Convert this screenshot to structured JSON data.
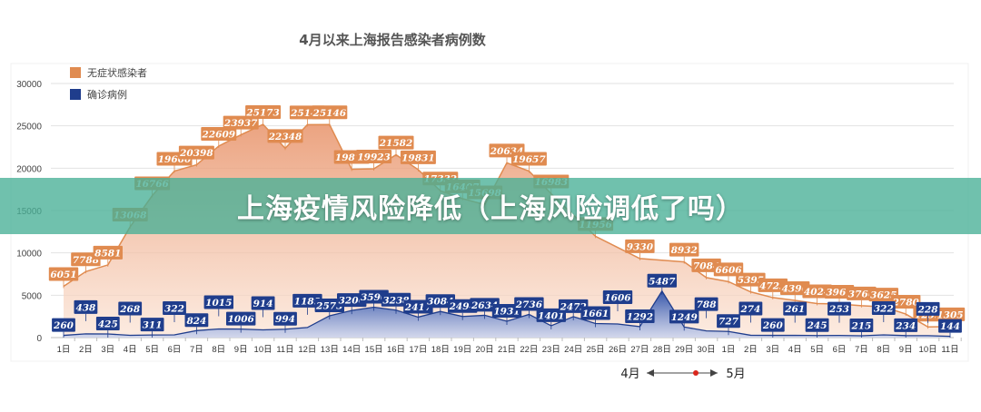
{
  "banner": {
    "text": "上海疫情风险降低（上海风险调低了吗）"
  },
  "chart_data": {
    "type": "area",
    "title": "4月以来上海报告感染者病例数",
    "categories": [
      "1日",
      "2日",
      "3日",
      "4日",
      "5日",
      "6日",
      "7日",
      "8日",
      "9日",
      "10日",
      "11日",
      "12日",
      "13日",
      "14日",
      "15日",
      "16日",
      "17日",
      "18日",
      "19日",
      "20日",
      "21日",
      "22日",
      "23日",
      "24日",
      "25日",
      "26日",
      "27日",
      "28日",
      "29日",
      "30日",
      "1日",
      "2日",
      "3日",
      "4日",
      "5日",
      "6日",
      "7日",
      "8日",
      "9日",
      "10日",
      "11日"
    ],
    "series": [
      {
        "name": "无症状感染者",
        "color": "#e08b50",
        "values": [
          6051,
          7788,
          8581,
          13068,
          16766,
          19660,
          20398,
          22609,
          23937,
          25173,
          22348,
          25141,
          25146,
          19872,
          19923,
          21582,
          19831,
          17332,
          16407,
          15698,
          20634,
          19657,
          16983,
          null,
          11956,
          null,
          9330,
          null,
          8932,
          7084,
          6606,
          5395,
          4722,
          4390,
          4024,
          3961,
          3760,
          3625,
          2780,
          1259,
          1305
        ]
      },
      {
        "name": "确诊病例",
        "color": "#1f3d8c",
        "values": [
          260,
          438,
          425,
          268,
          311,
          322,
          824,
          1015,
          1006,
          914,
          994,
          1189,
          2573,
          3200,
          3590,
          3238,
          2417,
          3084,
          2494,
          2634,
          1931,
          2736,
          1401,
          2472,
          1661,
          1606,
          1292,
          5487,
          1249,
          788,
          727,
          274,
          260,
          261,
          245,
          253,
          215,
          322,
          234,
          228,
          144
        ]
      }
    ],
    "yticks": [
      0,
      5000,
      10000,
      15000,
      20000,
      25000,
      30000
    ],
    "ylim": [
      0,
      30000
    ],
    "legend": "top-left",
    "month_axis": {
      "from": "4月",
      "to": "5月"
    }
  }
}
